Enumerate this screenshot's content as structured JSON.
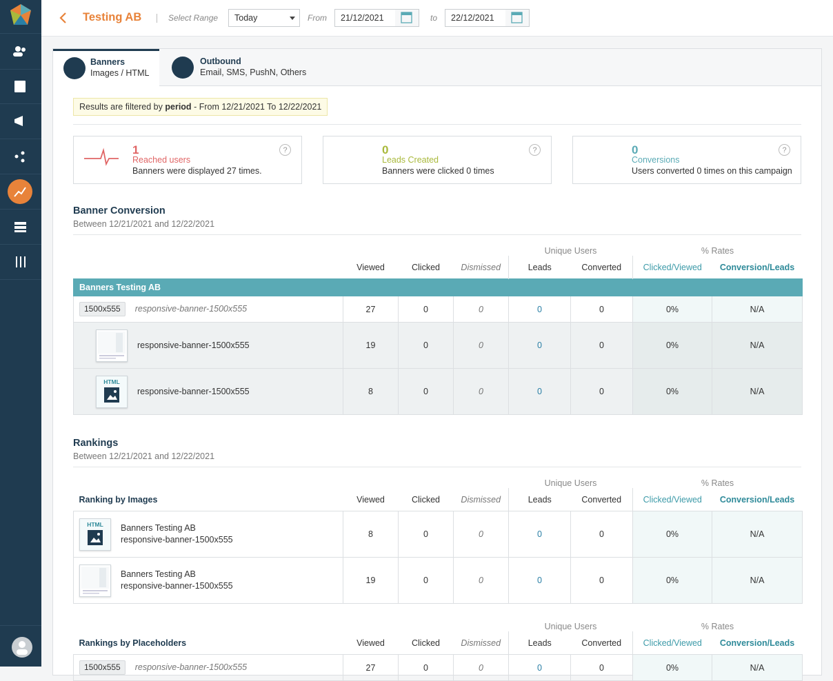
{
  "header": {
    "title": "Testing AB",
    "range_label": "Select Range",
    "range_value": "Today",
    "from_label": "From",
    "from_date": "21/12/2021",
    "to_label": "to",
    "to_date": "22/12/2021"
  },
  "tabs": [
    {
      "title": "Banners",
      "subtitle": "Images / HTML"
    },
    {
      "title": "Outbound",
      "subtitle": "Email, SMS, PushN, Others"
    }
  ],
  "filter": {
    "prefix": "Results are filtered by",
    "keyword": "period",
    "suffix": "- From 12/21/2021 To 12/22/2021"
  },
  "kpis": [
    {
      "value": 1,
      "label": "Reached users",
      "description": "Banners were displayed 27 times.",
      "color": "#e06565"
    },
    {
      "value": 0,
      "label": "Leads Created",
      "description": "Banners were clicked 0 times",
      "color": "#a9b93c"
    },
    {
      "value": 0,
      "label": "Conversions",
      "description": "Users converted 0 times on this campaign",
      "color": "#5aaab5"
    }
  ],
  "banner_conversion": {
    "title": "Banner Conversion",
    "subtitle": "Between 12/21/2021 and 12/22/2021",
    "group_headers": [
      "Unique Users",
      "% Rates"
    ],
    "headers": [
      "Viewed",
      "Clicked",
      "Dismissed",
      "Leads",
      "Converted",
      "Clicked/Viewed",
      "Conversion/Leads"
    ],
    "group_title": "Banners Testing AB",
    "rows": [
      {
        "size": "1500x555",
        "name": "responsive-banner-1500x555",
        "cells": [
          "27",
          "0",
          "0",
          "0",
          "0",
          "0%",
          "N/A"
        ]
      },
      {
        "name": "responsive-banner-1500x555",
        "cells": [
          "19",
          "0",
          "0",
          "0",
          "0",
          "0%",
          "N/A"
        ]
      },
      {
        "thumb": "HTML",
        "name": "responsive-banner-1500x555",
        "cells": [
          "8",
          "0",
          "0",
          "0",
          "0",
          "0%",
          "N/A"
        ]
      }
    ]
  },
  "rankings": {
    "title": "Rankings",
    "subtitle": "Between 12/21/2021 and 12/22/2021",
    "tables": [
      {
        "title": "Ranking by Images",
        "group_headers": [
          "Unique Users",
          "% Rates"
        ],
        "headers": [
          "Viewed",
          "Clicked",
          "Dismissed",
          "Leads",
          "Converted",
          "Clicked/Viewed",
          "Conversion/Leads"
        ],
        "rows": [
          {
            "thumb": "HTML",
            "campaign": "Banners Testing AB",
            "name": "responsive-banner-1500x555",
            "cells": [
              "8",
              "0",
              "0",
              "0",
              "0",
              "0%",
              "N/A"
            ]
          },
          {
            "campaign": "Banners Testing AB",
            "name": "responsive-banner-1500x555",
            "cells": [
              "19",
              "0",
              "0",
              "0",
              "0",
              "0%",
              "N/A"
            ]
          }
        ]
      },
      {
        "title": "Rankings by Placeholders",
        "group_headers": [
          "Unique Users",
          "% Rates"
        ],
        "headers": [
          "Viewed",
          "Clicked",
          "Dismissed",
          "Leads",
          "Converted",
          "Clicked/Viewed",
          "Conversion/Leads"
        ],
        "rows": [
          {
            "size": "1500x555",
            "name": "responsive-banner-1500x555",
            "cells": [
              "27",
              "0",
              "0",
              "0",
              "0",
              "0%",
              "N/A"
            ]
          }
        ]
      }
    ]
  }
}
